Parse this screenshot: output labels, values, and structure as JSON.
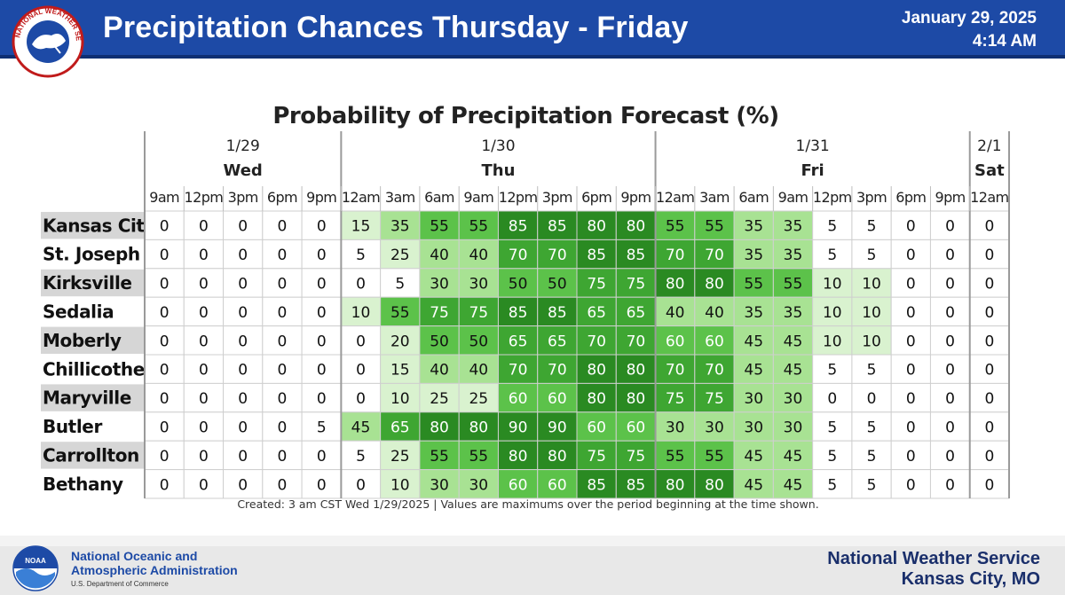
{
  "header": {
    "title": "Precipitation Chances Thursday - Friday",
    "date": "January 29, 2025",
    "time": "4:14 AM",
    "logo_text": "NATIONAL WEATHER SERVICE"
  },
  "chart_data": {
    "type": "table",
    "title": "Probability of Precipitation Forecast (%)",
    "day_groups": [
      {
        "date": "1/29",
        "day": "Wed",
        "times": [
          "9am",
          "12pm",
          "3pm",
          "6pm",
          "9pm"
        ]
      },
      {
        "date": "1/30",
        "day": "Thu",
        "times": [
          "12am",
          "3am",
          "6am",
          "9am",
          "12pm",
          "3pm",
          "6pm",
          "9pm"
        ]
      },
      {
        "date": "1/31",
        "day": "Fri",
        "times": [
          "12am",
          "3am",
          "6am",
          "9am",
          "12pm",
          "3pm",
          "6pm",
          "9pm"
        ]
      },
      {
        "date": "2/1",
        "day": "Sat",
        "times": [
          "12am"
        ]
      }
    ],
    "rows": [
      {
        "city": "Kansas City",
        "values": [
          0,
          0,
          0,
          0,
          0,
          15,
          35,
          55,
          55,
          85,
          85,
          80,
          80,
          55,
          55,
          35,
          35,
          5,
          5,
          0,
          0,
          0
        ]
      },
      {
        "city": "St. Joseph",
        "values": [
          0,
          0,
          0,
          0,
          0,
          5,
          25,
          40,
          40,
          70,
          70,
          85,
          85,
          70,
          70,
          35,
          35,
          5,
          5,
          0,
          0,
          0
        ]
      },
      {
        "city": "Kirksville",
        "values": [
          0,
          0,
          0,
          0,
          0,
          0,
          5,
          30,
          30,
          50,
          50,
          75,
          75,
          80,
          80,
          55,
          55,
          10,
          10,
          0,
          0,
          0
        ]
      },
      {
        "city": "Sedalia",
        "values": [
          0,
          0,
          0,
          0,
          0,
          10,
          55,
          75,
          75,
          85,
          85,
          65,
          65,
          40,
          40,
          35,
          35,
          10,
          10,
          0,
          0,
          0
        ]
      },
      {
        "city": "Moberly",
        "values": [
          0,
          0,
          0,
          0,
          0,
          0,
          20,
          50,
          50,
          65,
          65,
          70,
          70,
          60,
          60,
          45,
          45,
          10,
          10,
          0,
          0,
          0
        ]
      },
      {
        "city": "Chillicothe",
        "values": [
          0,
          0,
          0,
          0,
          0,
          0,
          15,
          40,
          40,
          70,
          70,
          80,
          80,
          70,
          70,
          45,
          45,
          5,
          5,
          0,
          0,
          0
        ]
      },
      {
        "city": "Maryville",
        "values": [
          0,
          0,
          0,
          0,
          0,
          0,
          10,
          25,
          25,
          60,
          60,
          80,
          80,
          75,
          75,
          30,
          30,
          0,
          0,
          0,
          0,
          0
        ]
      },
      {
        "city": "Butler",
        "values": [
          0,
          0,
          0,
          0,
          5,
          45,
          65,
          80,
          80,
          90,
          90,
          60,
          60,
          30,
          30,
          30,
          30,
          5,
          5,
          0,
          0,
          0
        ]
      },
      {
        "city": "Carrollton",
        "values": [
          0,
          0,
          0,
          0,
          0,
          5,
          25,
          55,
          55,
          80,
          80,
          75,
          75,
          55,
          55,
          45,
          45,
          5,
          5,
          0,
          0,
          0
        ]
      },
      {
        "city": "Bethany",
        "values": [
          0,
          0,
          0,
          0,
          0,
          0,
          10,
          30,
          30,
          60,
          60,
          85,
          85,
          80,
          80,
          45,
          45,
          5,
          5,
          0,
          0,
          0
        ]
      }
    ],
    "color_scale": [
      {
        "max": 9,
        "color": "#ffffff"
      },
      {
        "max": 29,
        "color": "#d9f2cf"
      },
      {
        "max": 49,
        "color": "#a8e293"
      },
      {
        "max": 64,
        "color": "#5cc24a"
      },
      {
        "max": 79,
        "color": "#3ea632"
      },
      {
        "max": 100,
        "color": "#2a8a22"
      }
    ]
  },
  "note": "Created: 3 am CST Wed 1/29/2025  |  Values are maximums over the period beginning at the time shown.",
  "footer": {
    "noaa_line1": "National Oceanic and",
    "noaa_line2": "Atmospheric Administration",
    "noaa_sub": "U.S. Department of Commerce",
    "noaa_logo_text": "NOAA",
    "office_line1": "National Weather Service",
    "office_line2": "Kansas City, MO"
  }
}
